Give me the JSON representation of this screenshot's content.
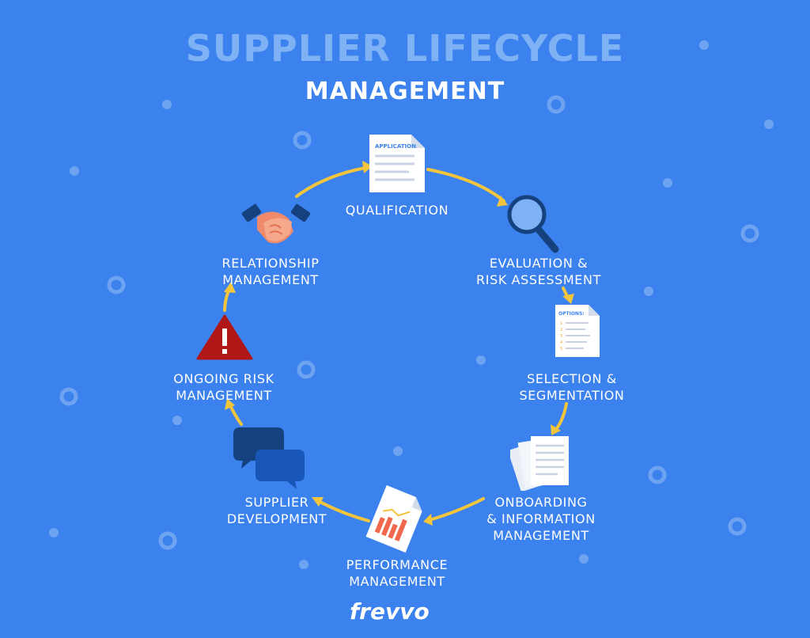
{
  "title": {
    "main": "SUPPLIER LIFECYCLE",
    "sub": "MANAGEMENT"
  },
  "stages": [
    {
      "label": "QUALIFICATION",
      "icon": "application-document-icon",
      "icon_text": "APPLICATION"
    },
    {
      "label": "EVALUATION &\nRISK ASSESSMENT",
      "icon": "magnifying-glass-icon"
    },
    {
      "label": "SELECTION &\nSEGMENTATION",
      "icon": "options-list-icon",
      "icon_text": "OPTIONS:"
    },
    {
      "label": "ONBOARDING\n& INFORMATION\nMANAGEMENT",
      "icon": "document-stack-icon"
    },
    {
      "label": "PERFORMANCE\nMANAGEMENT",
      "icon": "bar-chart-document-icon"
    },
    {
      "label": "SUPPLIER\nDEVELOPMENT",
      "icon": "chat-bubbles-icon"
    },
    {
      "label": "ONGOING RISK\nMANAGEMENT",
      "icon": "warning-triangle-icon"
    },
    {
      "label": "RELATIONSHIP\nMANAGEMENT",
      "icon": "handshake-icon"
    }
  ],
  "brand": {
    "name": "frevvo"
  },
  "colors": {
    "background": "#3b82ef",
    "title_main": "#7fb2f5",
    "arrow": "#f2c53d",
    "warning": "#b01818",
    "chart_bars": "#f0674d",
    "dark_blue": "#15417e"
  }
}
